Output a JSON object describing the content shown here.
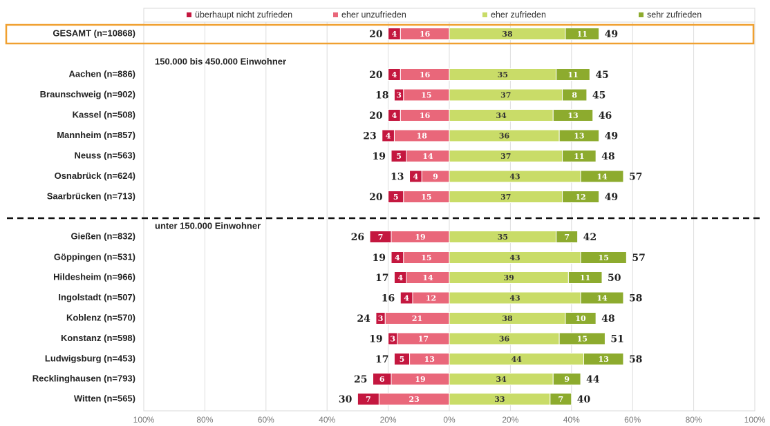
{
  "chart_data": {
    "type": "diverging-bar",
    "series": [
      {
        "name": "überhaupt nicht zufrieden",
        "color": "#c4173f",
        "direction": "left",
        "values": [
          4,
          4,
          3,
          4,
          4,
          5,
          4,
          5,
          7,
          4,
          4,
          4,
          3,
          3,
          5,
          6,
          7
        ]
      },
      {
        "name": "eher unzufrieden",
        "color": "#e9677a",
        "direction": "left",
        "values": [
          16,
          16,
          15,
          16,
          18,
          14,
          9,
          15,
          19,
          15,
          14,
          12,
          21,
          17,
          13,
          19,
          23
        ]
      },
      {
        "name": "eher zufrieden",
        "color": "#c9dc68",
        "direction": "right",
        "values": [
          38,
          35,
          37,
          34,
          36,
          37,
          43,
          37,
          35,
          43,
          39,
          43,
          38,
          36,
          44,
          34,
          33
        ]
      },
      {
        "name": "sehr zufrieden",
        "color": "#8dab2e",
        "direction": "right",
        "values": [
          11,
          11,
          8,
          13,
          13,
          11,
          14,
          12,
          7,
          15,
          11,
          14,
          10,
          15,
          13,
          9,
          7
        ]
      }
    ],
    "categories": [
      "GESAMT (n=10868)",
      "Aachen (n=886)",
      "Braunschweig (n=902)",
      "Kassel (n=508)",
      "Mannheim (n=857)",
      "Neuss (n=563)",
      "Osnabrück (n=624)",
      "Saarbrücken (n=713)",
      "Gießen (n=832)",
      "Göppingen (n=531)",
      "Hildesheim (n=966)",
      "Ingolstadt (n=507)",
      "Koblenz (n=570)",
      "Konstanz (n=598)",
      "Ludwigsburg (n=453)",
      "Recklinghausen (n=793)",
      "Witten (n=565)"
    ],
    "totals_left": [
      20,
      20,
      18,
      20,
      23,
      19,
      13,
      20,
      26,
      19,
      17,
      16,
      24,
      19,
      17,
      25,
      30
    ],
    "totals_right": [
      49,
      45,
      45,
      46,
      49,
      48,
      57,
      49,
      42,
      57,
      50,
      58,
      48,
      51,
      58,
      44,
      40
    ],
    "groups": [
      {
        "label": "150.000 bis 450.000 Einwohner"
      },
      {
        "label": "unter 150.000 Einwohner"
      }
    ],
    "xlim": [
      -100,
      100
    ],
    "xticks": [
      {
        "value": -100,
        "label": "100%"
      },
      {
        "value": -80,
        "label": "80%"
      },
      {
        "value": -60,
        "label": "60%"
      },
      {
        "value": -40,
        "label": "40%"
      },
      {
        "value": -20,
        "label": "20%"
      },
      {
        "value": 0,
        "label": "0%"
      },
      {
        "value": 20,
        "label": "20%"
      },
      {
        "value": 40,
        "label": "40%"
      },
      {
        "value": 60,
        "label": "60%"
      },
      {
        "value": 80,
        "label": "80%"
      },
      {
        "value": 100,
        "label": "100%"
      }
    ],
    "grid": true
  }
}
